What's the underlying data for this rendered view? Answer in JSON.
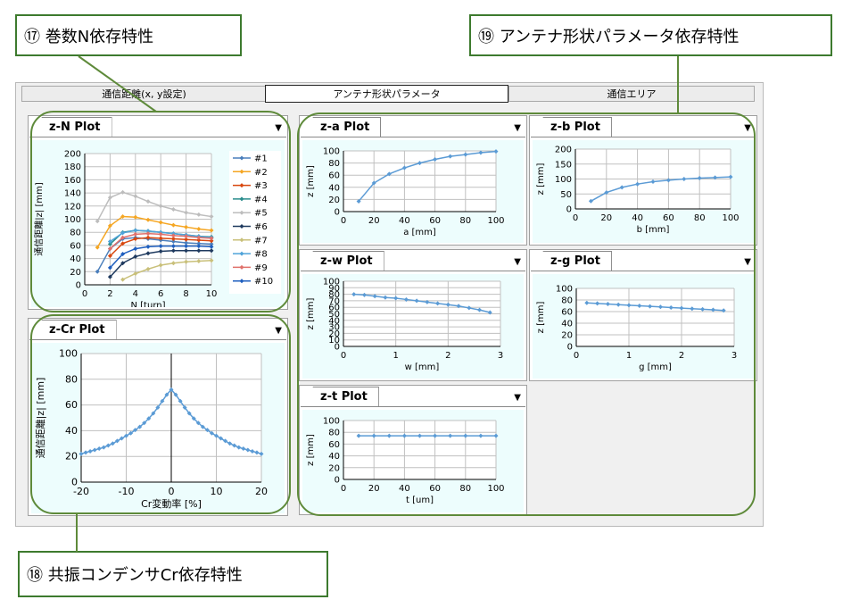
{
  "callouts": {
    "n_dependence": "⑰ 巻数N依存特性",
    "antenna_dependence": "⑲ アンテナ形状パラメータ依存特性",
    "cr_dependence": "⑱ 共振コンデンサCr依存特性"
  },
  "tabs": [
    {
      "label": "通信距離(x, y設定)"
    },
    {
      "label": "アンテナ形状パラメータ"
    },
    {
      "label": "通信エリア"
    }
  ],
  "colors": {
    "accent": "#5e8a3a",
    "line": "#5b9bd5",
    "grid": "#c8c8c8"
  },
  "charts": {
    "zN": {
      "title": "z-N Plot",
      "xlabel": "N [turn]",
      "ylabel": "通信距離|z| [mm]",
      "xticks": [
        "0",
        "2",
        "4",
        "6",
        "8",
        "10"
      ],
      "yticks": [
        "0",
        "20",
        "40",
        "60",
        "80",
        "100",
        "120",
        "140",
        "160",
        "180",
        "200"
      ],
      "legend": [
        "#1",
        "#2",
        "#3",
        "#4",
        "#5",
        "#6",
        "#7",
        "#8",
        "#9",
        "#10"
      ]
    },
    "zCr": {
      "title": "z-Cr Plot",
      "xlabel": "Cr変動率 [%]",
      "ylabel": "通信距離|z| [mm]",
      "xticks": [
        "-20",
        "-10",
        "0",
        "10",
        "20"
      ],
      "yticks": [
        "0",
        "20",
        "40",
        "60",
        "80",
        "100"
      ]
    },
    "za": {
      "title": "z-a Plot",
      "xlabel": "a [mm]",
      "ylabel": "z [mm]",
      "xticks": [
        "0",
        "20",
        "40",
        "60",
        "80",
        "100"
      ],
      "yticks": [
        "0",
        "20",
        "40",
        "60",
        "80",
        "100"
      ]
    },
    "zb": {
      "title": "z-b Plot",
      "xlabel": "b [mm]",
      "ylabel": "z [mm]",
      "xticks": [
        "0",
        "20",
        "40",
        "60",
        "80",
        "100"
      ],
      "yticks": [
        "0",
        "50",
        "100",
        "150",
        "200"
      ]
    },
    "zw": {
      "title": "z-w Plot",
      "xlabel": "w [mm]",
      "ylabel": "z [mm]",
      "xticks": [
        "0",
        "1",
        "2",
        "3"
      ],
      "yticks": [
        "0",
        "10",
        "20",
        "30",
        "40",
        "50",
        "60",
        "70",
        "80",
        "90",
        "100"
      ]
    },
    "zg": {
      "title": "z-g Plot",
      "xlabel": "g [mm]",
      "ylabel": "z [mm]",
      "xticks": [
        "0",
        "1",
        "2",
        "3"
      ],
      "yticks": [
        "0",
        "20",
        "40",
        "60",
        "80",
        "100"
      ]
    },
    "zt": {
      "title": "z-t Plot",
      "xlabel": "t [um]",
      "ylabel": "z [mm]",
      "xticks": [
        "0",
        "20",
        "40",
        "60",
        "80",
        "100"
      ],
      "yticks": [
        "0",
        "20",
        "40",
        "60",
        "80",
        "100"
      ]
    }
  },
  "chart_data": [
    {
      "type": "line",
      "title": "z-N Plot",
      "xlabel": "N [turn]",
      "ylabel": "通信距離|z| [mm]",
      "xlim": [
        0,
        10
      ],
      "ylim": [
        0,
        200
      ],
      "series": [
        {
          "name": "#1",
          "color": "#4a7ebb",
          "x": [
            1,
            2,
            3,
            4,
            5,
            6,
            7,
            8,
            9,
            10
          ],
          "values": [
            20,
            55,
            70,
            72,
            70,
            68,
            66,
            64,
            63,
            62
          ]
        },
        {
          "name": "#2",
          "color": "#f5a623",
          "x": [
            1,
            2,
            3,
            4,
            5,
            6,
            7,
            8,
            9,
            10
          ],
          "values": [
            57,
            90,
            104,
            103,
            99,
            95,
            91,
            88,
            85,
            83
          ]
        },
        {
          "name": "#3",
          "color": "#d9480f",
          "x": [
            2,
            3,
            4,
            5,
            6,
            7,
            8,
            9,
            10
          ],
          "values": [
            44,
            63,
            70,
            72,
            71,
            70,
            69,
            68,
            67
          ]
        },
        {
          "name": "#4",
          "color": "#2a8c8c",
          "x": [
            2,
            3,
            4,
            5,
            6,
            7,
            8,
            9,
            10
          ],
          "values": [
            62,
            80,
            83,
            82,
            80,
            78,
            76,
            74,
            73
          ]
        },
        {
          "name": "#5",
          "color": "#bdbdbd",
          "x": [
            1,
            2,
            3,
            4,
            5,
            6,
            7,
            8,
            9,
            10
          ],
          "values": [
            97,
            133,
            141,
            135,
            127,
            120,
            115,
            110,
            107,
            104
          ]
        },
        {
          "name": "#6",
          "color": "#1f3a5f",
          "x": [
            2,
            3,
            4,
            5,
            6,
            7,
            8,
            9,
            10
          ],
          "values": [
            12,
            33,
            43,
            48,
            51,
            52,
            52,
            52,
            52
          ]
        },
        {
          "name": "#7",
          "color": "#c9c07a",
          "x": [
            3,
            4,
            5,
            6,
            7,
            8,
            9,
            10
          ],
          "values": [
            8,
            17,
            24,
            30,
            33,
            35,
            36,
            37
          ]
        },
        {
          "name": "#8",
          "color": "#4fa3d9",
          "x": [
            2,
            3,
            4,
            5,
            6,
            7,
            8,
            9,
            10
          ],
          "values": [
            66,
            79,
            83,
            82,
            80,
            78,
            76,
            74,
            72
          ]
        },
        {
          "name": "#9",
          "color": "#e0706a",
          "x": [
            2,
            3,
            4,
            5,
            6,
            7,
            8,
            9,
            10
          ],
          "values": [
            55,
            72,
            77,
            78,
            77,
            75,
            74,
            72,
            71
          ]
        },
        {
          "name": "#10",
          "color": "#1f5fbf",
          "x": [
            2,
            3,
            4,
            5,
            6,
            7,
            8,
            9,
            10
          ],
          "values": [
            26,
            47,
            55,
            58,
            59,
            59,
            59,
            59,
            58
          ]
        }
      ]
    },
    {
      "type": "line",
      "title": "z-Cr Plot",
      "xlabel": "Cr変動率 [%]",
      "ylabel": "通信距離|z| [mm]",
      "xlim": [
        -20,
        20
      ],
      "ylim": [
        0,
        100
      ],
      "series": [
        {
          "x": [
            -20,
            -19,
            -18,
            -17,
            -16,
            -15,
            -14,
            -13,
            -12,
            -11,
            -10,
            -9,
            -8,
            -7,
            -6,
            -5,
            -4,
            -3,
            -2,
            -1,
            0,
            1,
            2,
            3,
            4,
            5,
            6,
            7,
            8,
            9,
            10,
            11,
            12,
            13,
            14,
            15,
            16,
            17,
            18,
            19,
            20
          ],
          "values": [
            22,
            23,
            24,
            25,
            26,
            27,
            28.5,
            30,
            32,
            34,
            36,
            38,
            40.5,
            43,
            46,
            49.5,
            53.5,
            58,
            63,
            68,
            72,
            68,
            63,
            58,
            53.5,
            49.5,
            46,
            43,
            40.5,
            38,
            36,
            34,
            32,
            30,
            28.5,
            27,
            26,
            25,
            24,
            23,
            22
          ]
        }
      ]
    },
    {
      "type": "line",
      "title": "z-a Plot",
      "xlabel": "a [mm]",
      "ylabel": "z [mm]",
      "xlim": [
        0,
        100
      ],
      "ylim": [
        0,
        100
      ],
      "series": [
        {
          "x": [
            10,
            20,
            30,
            40,
            50,
            60,
            70,
            80,
            90,
            100
          ],
          "values": [
            17,
            47,
            62,
            72,
            80,
            86,
            91,
            94,
            97,
            99
          ]
        }
      ]
    },
    {
      "type": "line",
      "title": "z-b Plot",
      "xlabel": "b [mm]",
      "ylabel": "z [mm]",
      "xlim": [
        0,
        100
      ],
      "ylim": [
        0,
        200
      ],
      "series": [
        {
          "x": [
            10,
            20,
            30,
            40,
            50,
            60,
            70,
            80,
            90,
            100
          ],
          "values": [
            26,
            55,
            72,
            83,
            91,
            96,
            100,
            103,
            105,
            107
          ]
        }
      ]
    },
    {
      "type": "line",
      "title": "z-w Plot",
      "xlabel": "w [mm]",
      "ylabel": "z [mm]",
      "xlim": [
        0,
        3
      ],
      "ylim": [
        0,
        100
      ],
      "series": [
        {
          "x": [
            0.2,
            0.4,
            0.6,
            0.8,
            1.0,
            1.2,
            1.4,
            1.6,
            1.8,
            2.0,
            2.2,
            2.4,
            2.6,
            2.8
          ],
          "values": [
            80,
            79,
            77,
            75,
            74,
            72,
            70,
            68,
            66,
            64,
            62,
            59,
            56,
            52
          ]
        }
      ]
    },
    {
      "type": "line",
      "title": "z-g Plot",
      "xlabel": "g [mm]",
      "ylabel": "z [mm]",
      "xlim": [
        0,
        3
      ],
      "ylim": [
        0,
        100
      ],
      "series": [
        {
          "x": [
            0.2,
            0.4,
            0.6,
            0.8,
            1.0,
            1.2,
            1.4,
            1.6,
            1.8,
            2.0,
            2.2,
            2.4,
            2.6,
            2.8
          ],
          "values": [
            75,
            74,
            73,
            72,
            71,
            70,
            69,
            68,
            67,
            66,
            65,
            64,
            63,
            62
          ]
        }
      ]
    },
    {
      "type": "line",
      "title": "z-t Plot",
      "xlabel": "t [um]",
      "ylabel": "z [mm]",
      "xlim": [
        0,
        100
      ],
      "ylim": [
        0,
        100
      ],
      "series": [
        {
          "x": [
            10,
            20,
            30,
            40,
            50,
            60,
            70,
            80,
            90,
            100
          ],
          "values": [
            74,
            74,
            74,
            74,
            74,
            74,
            74,
            74,
            74,
            74
          ]
        }
      ]
    }
  ]
}
